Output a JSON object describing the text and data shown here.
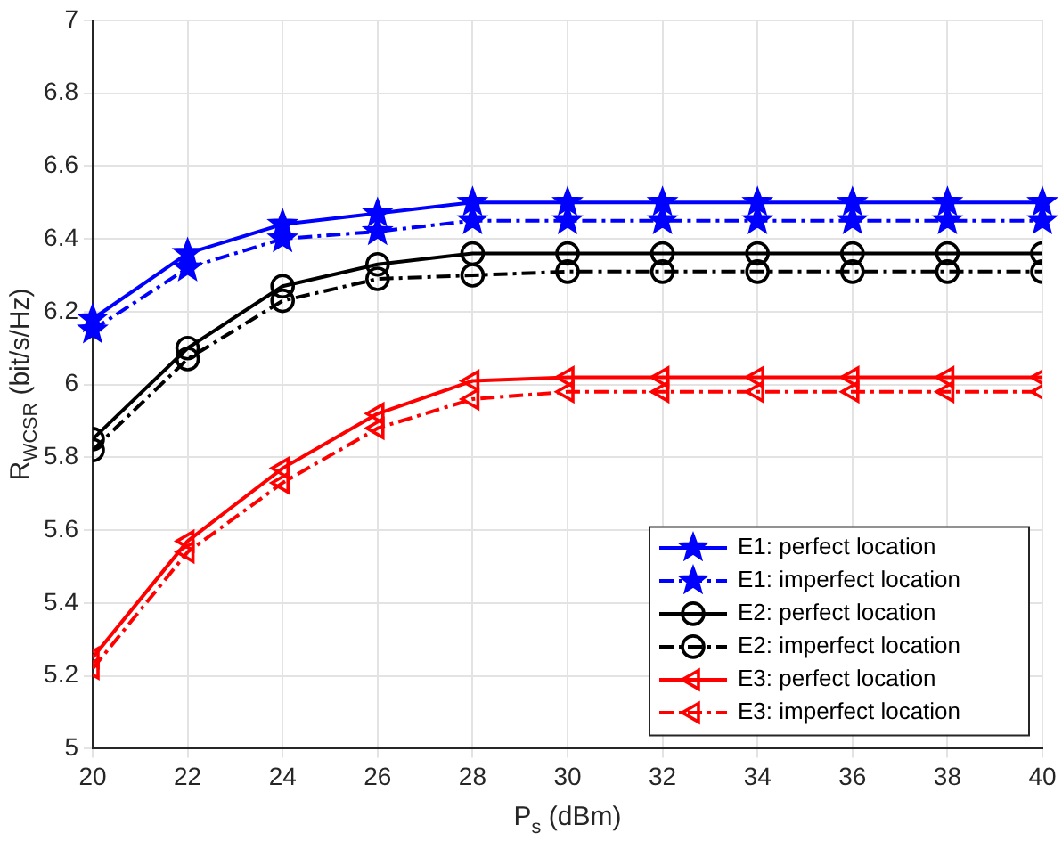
{
  "chart_data": {
    "type": "line",
    "xlabel": "P$_{s}$ (dBm)",
    "ylabel": "R$_{WCSR}$ (bit/s/Hz)",
    "x": [
      20,
      22,
      24,
      26,
      28,
      30,
      32,
      34,
      36,
      38,
      40
    ],
    "xlim": [
      20,
      40
    ],
    "xticks": [
      20,
      22,
      24,
      26,
      28,
      30,
      32,
      34,
      36,
      38,
      40
    ],
    "ylim": [
      5,
      7
    ],
    "yticks": [
      5,
      5.2,
      5.4,
      5.6,
      5.8,
      6,
      6.2,
      6.4,
      6.6,
      6.8,
      7
    ],
    "grid": true,
    "legend": "bottom right",
    "series": [
      {
        "name": "E1: perfect location",
        "color": "#0000ff",
        "marker": "star",
        "line_style": "solid",
        "values": [
          6.18,
          6.36,
          6.44,
          6.47,
          6.5,
          6.5,
          6.5,
          6.5,
          6.5,
          6.5,
          6.5
        ]
      },
      {
        "name": "E1: imperfect location",
        "color": "#0000ff",
        "marker": "star",
        "line_style": "dashed",
        "values": [
          6.15,
          6.32,
          6.4,
          6.42,
          6.45,
          6.45,
          6.45,
          6.45,
          6.45,
          6.45,
          6.45
        ]
      },
      {
        "name": "E2: perfect location",
        "color": "#000000",
        "marker": "circle",
        "line_style": "solid",
        "values": [
          5.85,
          6.1,
          6.27,
          6.33,
          6.36,
          6.36,
          6.36,
          6.36,
          6.36,
          6.36,
          6.36
        ]
      },
      {
        "name": "E2: imperfect location",
        "color": "#000000",
        "marker": "circle",
        "line_style": "dashed",
        "values": [
          5.82,
          6.07,
          6.23,
          6.29,
          6.3,
          6.31,
          6.31,
          6.31,
          6.31,
          6.31,
          6.31
        ]
      },
      {
        "name": "E3: perfect location",
        "color": "#ff0000",
        "marker": "triangle",
        "line_style": "solid",
        "values": [
          5.25,
          5.57,
          5.77,
          5.92,
          6.01,
          6.02,
          6.02,
          6.02,
          6.02,
          6.02,
          6.02
        ]
      },
      {
        "name": "E3: imperfect location",
        "color": "#ff0000",
        "marker": "triangle",
        "line_style": "dashed",
        "values": [
          5.22,
          5.54,
          5.73,
          5.88,
          5.96,
          5.98,
          5.98,
          5.98,
          5.98,
          5.98,
          5.98
        ]
      }
    ]
  }
}
